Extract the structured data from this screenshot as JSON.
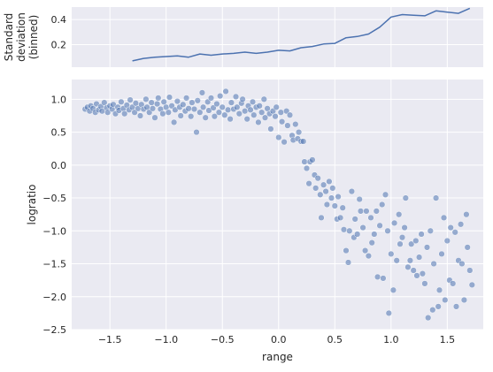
{
  "chart_data": [
    {
      "type": "line",
      "ylabel": [
        "Standard",
        "deviation",
        "(binned)"
      ],
      "ylim": [
        0.02,
        0.5
      ],
      "yticks": [
        0.2,
        0.4
      ],
      "yticklabels": [
        "0.2",
        "0.4"
      ],
      "shares_x_with_lower_panel": true,
      "grid": true,
      "series": [
        {
          "color": "#4c72b0",
          "x": [
            -1.3,
            -1.2,
            -1.1,
            -1.0,
            -0.9,
            -0.8,
            -0.7,
            -0.6,
            -0.5,
            -0.4,
            -0.3,
            -0.2,
            -0.1,
            0.0,
            0.1,
            0.2,
            0.3,
            0.4,
            0.5,
            0.6,
            0.7,
            0.8,
            0.9,
            1.0,
            1.1,
            1.2,
            1.3,
            1.4,
            1.5,
            1.6,
            1.7
          ],
          "y": [
            0.07,
            0.09,
            0.1,
            0.105,
            0.11,
            0.1,
            0.125,
            0.115,
            0.125,
            0.13,
            0.14,
            0.13,
            0.14,
            0.155,
            0.15,
            0.175,
            0.185,
            0.205,
            0.21,
            0.255,
            0.265,
            0.285,
            0.34,
            0.42,
            0.44,
            0.435,
            0.43,
            0.47,
            0.46,
            0.45,
            0.49
          ]
        }
      ]
    },
    {
      "type": "scatter",
      "xlabel": "range",
      "ylabel": "logratio",
      "xlim": [
        -1.84,
        1.82
      ],
      "ylim": [
        -2.5,
        1.3
      ],
      "xticks": [
        -1.5,
        -1.0,
        -0.5,
        0.0,
        0.5,
        1.0,
        1.5
      ],
      "xticklabels": [
        "−1.5",
        "−1.0",
        "−0.5",
        "0.0",
        "0.5",
        "1.0",
        "1.5"
      ],
      "yticks": [
        1.0,
        0.5,
        0.0,
        -0.5,
        -1.0,
        -1.5,
        -2.0,
        -2.5
      ],
      "yticklabels": [
        "1.0",
        "0.5",
        "0.0",
        "−0.5",
        "−1.0",
        "−1.5",
        "−2.0",
        "−2.5"
      ],
      "grid": true,
      "point_color": "#4c72b0",
      "point_alpha": 0.55,
      "points": [
        [
          -1.72,
          0.85
        ],
        [
          -1.7,
          0.88
        ],
        [
          -1.68,
          0.82
        ],
        [
          -1.67,
          0.9
        ],
        [
          -1.65,
          0.86
        ],
        [
          -1.63,
          0.8
        ],
        [
          -1.62,
          0.93
        ],
        [
          -1.6,
          0.84
        ],
        [
          -1.58,
          0.89
        ],
        [
          -1.57,
          0.82
        ],
        [
          -1.55,
          0.95
        ],
        [
          -1.53,
          0.87
        ],
        [
          -1.52,
          0.8
        ],
        [
          -1.5,
          0.9
        ],
        [
          -1.48,
          0.85
        ],
        [
          -1.47,
          0.92
        ],
        [
          -1.45,
          0.78
        ],
        [
          -1.43,
          0.88
        ],
        [
          -1.42,
          0.83
        ],
        [
          -1.4,
          0.96
        ],
        [
          -1.38,
          0.86
        ],
        [
          -1.37,
          0.78
        ],
        [
          -1.35,
          0.91
        ],
        [
          -1.33,
          0.84
        ],
        [
          -1.32,
          0.99
        ],
        [
          -1.3,
          0.88
        ],
        [
          -1.28,
          0.8
        ],
        [
          -1.27,
          0.94
        ],
        [
          -1.25,
          0.86
        ],
        [
          -1.23,
          0.75
        ],
        [
          -1.22,
          0.92
        ],
        [
          -1.2,
          0.85
        ],
        [
          -1.18,
          1.0
        ],
        [
          -1.17,
          0.88
        ],
        [
          -1.15,
          0.8
        ],
        [
          -1.13,
          0.95
        ],
        [
          -1.12,
          0.86
        ],
        [
          -1.1,
          0.72
        ],
        [
          -1.08,
          0.93
        ],
        [
          -1.07,
          1.02
        ],
        [
          -1.05,
          0.85
        ],
        [
          -1.03,
          0.78
        ],
        [
          -1.02,
          0.96
        ],
        [
          -1.0,
          0.88
        ],
        [
          -0.98,
          0.8
        ],
        [
          -0.97,
          1.03
        ],
        [
          -0.95,
          0.9
        ],
        [
          -0.93,
          0.65
        ],
        [
          -0.92,
          0.84
        ],
        [
          -0.9,
          0.97
        ],
        [
          -0.88,
          0.88
        ],
        [
          -0.87,
          0.75
        ],
        [
          -0.85,
          0.92
        ],
        [
          -0.83,
          0.82
        ],
        [
          -0.82,
          1.02
        ],
        [
          -0.8,
          0.86
        ],
        [
          -0.78,
          0.74
        ],
        [
          -0.77,
          0.95
        ],
        [
          -0.75,
          0.85
        ],
        [
          -0.73,
          0.5
        ],
        [
          -0.72,
          0.98
        ],
        [
          -0.7,
          0.8
        ],
        [
          -0.68,
          1.1
        ],
        [
          -0.67,
          0.88
        ],
        [
          -0.65,
          0.72
        ],
        [
          -0.63,
          0.96
        ],
        [
          -0.62,
          0.83
        ],
        [
          -0.6,
          1.02
        ],
        [
          -0.58,
          0.87
        ],
        [
          -0.57,
          0.74
        ],
        [
          -0.55,
          0.93
        ],
        [
          -0.53,
          0.8
        ],
        [
          -0.52,
          1.05
        ],
        [
          -0.5,
          0.88
        ],
        [
          -0.48,
          0.76
        ],
        [
          -0.47,
          1.12
        ],
        [
          -0.45,
          0.84
        ],
        [
          -0.43,
          0.7
        ],
        [
          -0.42,
          0.95
        ],
        [
          -0.4,
          0.85
        ],
        [
          -0.38,
          1.04
        ],
        [
          -0.37,
          0.88
        ],
        [
          -0.35,
          0.78
        ],
        [
          -0.33,
          0.94
        ],
        [
          -0.32,
          1.0
        ],
        [
          -0.3,
          0.82
        ],
        [
          -0.28,
          0.7
        ],
        [
          -0.27,
          0.9
        ],
        [
          -0.25,
          0.84
        ],
        [
          -0.23,
          0.96
        ],
        [
          -0.22,
          0.76
        ],
        [
          -0.2,
          0.88
        ],
        [
          -0.18,
          0.65
        ],
        [
          -0.17,
          0.9
        ],
        [
          -0.15,
          0.8
        ],
        [
          -0.13,
          1.0
        ],
        [
          -0.12,
          0.72
        ],
        [
          -0.1,
          0.86
        ],
        [
          -0.08,
          0.78
        ],
        [
          -0.07,
          0.55
        ],
        [
          -0.05,
          0.82
        ],
        [
          -0.03,
          0.74
        ],
        [
          -0.02,
          0.88
        ],
        [
          0.0,
          0.42
        ],
        [
          0.02,
          0.8
        ],
        [
          0.03,
          0.66
        ],
        [
          0.05,
          0.35
        ],
        [
          0.07,
          0.82
        ],
        [
          0.08,
          0.6
        ],
        [
          0.1,
          0.76
        ],
        [
          0.12,
          0.45
        ],
        [
          0.13,
          0.38
        ],
        [
          0.15,
          0.62
        ],
        [
          0.17,
          0.4
        ],
        [
          0.18,
          0.5
        ],
        [
          0.2,
          0.36
        ],
        [
          0.22,
          0.36
        ],
        [
          0.23,
          0.05
        ],
        [
          0.25,
          -0.05
        ],
        [
          0.27,
          -0.28
        ],
        [
          0.28,
          0.05
        ],
        [
          0.3,
          0.08
        ],
        [
          0.32,
          -0.15
        ],
        [
          0.33,
          -0.35
        ],
        [
          0.35,
          -0.2
        ],
        [
          0.37,
          -0.45
        ],
        [
          0.38,
          -0.8
        ],
        [
          0.4,
          -0.3
        ],
        [
          0.42,
          -0.4
        ],
        [
          0.43,
          -0.6
        ],
        [
          0.45,
          -0.25
        ],
        [
          0.47,
          -0.5
        ],
        [
          0.48,
          -0.35
        ],
        [
          0.5,
          -0.62
        ],
        [
          0.52,
          -0.82
        ],
        [
          0.53,
          -0.48
        ],
        [
          0.55,
          -0.8
        ],
        [
          0.57,
          -0.65
        ],
        [
          0.58,
          -0.98
        ],
        [
          0.6,
          -1.3
        ],
        [
          0.62,
          -1.48
        ],
        [
          0.63,
          -1.0
        ],
        [
          0.65,
          -0.4
        ],
        [
          0.67,
          -1.1
        ],
        [
          0.68,
          -0.82
        ],
        [
          0.7,
          -1.05
        ],
        [
          0.72,
          -0.52
        ],
        [
          0.73,
          -0.7
        ],
        [
          0.75,
          -0.95
        ],
        [
          0.77,
          -1.3
        ],
        [
          0.78,
          -0.7
        ],
        [
          0.8,
          -1.38
        ],
        [
          0.82,
          -0.8
        ],
        [
          0.83,
          -1.18
        ],
        [
          0.85,
          -1.05
        ],
        [
          0.87,
          -0.7
        ],
        [
          0.88,
          -1.7
        ],
        [
          0.9,
          -0.92
        ],
        [
          0.92,
          -0.6
        ],
        [
          0.93,
          -1.72
        ],
        [
          0.95,
          -0.45
        ],
        [
          0.97,
          -1.0
        ],
        [
          0.98,
          -2.25
        ],
        [
          1.0,
          -1.35
        ],
        [
          1.02,
          -1.9
        ],
        [
          1.03,
          -0.88
        ],
        [
          1.05,
          -1.45
        ],
        [
          1.07,
          -0.75
        ],
        [
          1.08,
          -1.2
        ],
        [
          1.1,
          -1.1
        ],
        [
          1.12,
          -0.95
        ],
        [
          1.13,
          -0.5
        ],
        [
          1.15,
          -1.55
        ],
        [
          1.17,
          -1.45
        ],
        [
          1.18,
          -1.2
        ],
        [
          1.2,
          -1.6
        ],
        [
          1.22,
          -1.15
        ],
        [
          1.23,
          -1.68
        ],
        [
          1.25,
          -1.4
        ],
        [
          1.27,
          -1.05
        ],
        [
          1.28,
          -1.65
        ],
        [
          1.3,
          -1.8
        ],
        [
          1.32,
          -1.25
        ],
        [
          1.33,
          -2.32
        ],
        [
          1.35,
          -1.0
        ],
        [
          1.37,
          -2.2
        ],
        [
          1.38,
          -1.5
        ],
        [
          1.4,
          -0.5
        ],
        [
          1.42,
          -2.15
        ],
        [
          1.43,
          -1.9
        ],
        [
          1.45,
          -1.35
        ],
        [
          1.47,
          -0.8
        ],
        [
          1.48,
          -2.05
        ],
        [
          1.5,
          -1.15
        ],
        [
          1.52,
          -1.75
        ],
        [
          1.53,
          -0.95
        ],
        [
          1.55,
          -1.8
        ],
        [
          1.57,
          -1.02
        ],
        [
          1.58,
          -2.15
        ],
        [
          1.6,
          -1.45
        ],
        [
          1.62,
          -0.9
        ],
        [
          1.63,
          -1.5
        ],
        [
          1.65,
          -2.05
        ],
        [
          1.67,
          -0.75
        ],
        [
          1.68,
          -1.25
        ],
        [
          1.7,
          -1.6
        ],
        [
          1.72,
          -1.82
        ]
      ]
    }
  ]
}
